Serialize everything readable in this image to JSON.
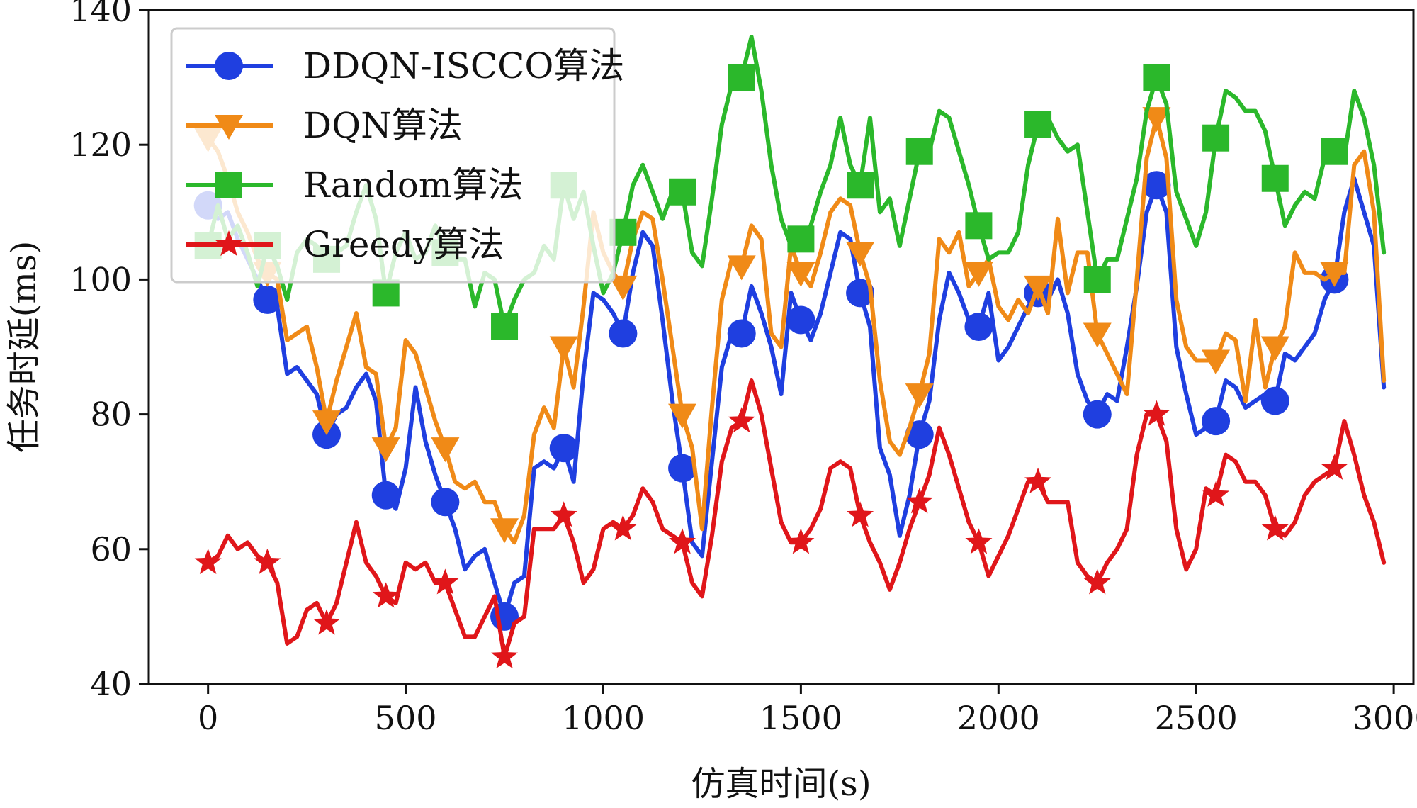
{
  "chart_data": {
    "type": "line",
    "title": "",
    "xlabel": "仿真时间(s)",
    "ylabel": "任务时延(ms)",
    "xlim": [
      -150,
      3050
    ],
    "ylim": [
      40,
      140
    ],
    "xticks": [
      0,
      500,
      1000,
      1500,
      2000,
      2500,
      3000
    ],
    "yticks": [
      40,
      60,
      80,
      100,
      120,
      140
    ],
    "grid": false,
    "legend_position": "top-left",
    "marker_every_x": [
      0,
      150,
      300,
      450,
      600,
      750,
      900,
      1050,
      1200,
      1350,
      1500,
      1650,
      1800,
      1950,
      2100,
      2250,
      2400,
      2550,
      2700,
      2850
    ],
    "x": [
      0,
      25,
      50,
      75,
      100,
      125,
      150,
      175,
      200,
      225,
      250,
      275,
      300,
      325,
      350,
      375,
      400,
      425,
      450,
      475,
      500,
      525,
      550,
      575,
      600,
      625,
      650,
      675,
      700,
      725,
      750,
      775,
      800,
      825,
      850,
      875,
      900,
      925,
      950,
      975,
      1000,
      1025,
      1050,
      1075,
      1100,
      1125,
      1150,
      1175,
      1200,
      1225,
      1250,
      1275,
      1300,
      1325,
      1350,
      1375,
      1400,
      1425,
      1450,
      1475,
      1500,
      1525,
      1550,
      1575,
      1600,
      1625,
      1650,
      1675,
      1700,
      1725,
      1750,
      1775,
      1800,
      1825,
      1850,
      1875,
      1900,
      1925,
      1950,
      1975,
      2000,
      2025,
      2050,
      2075,
      2100,
      2125,
      2150,
      2175,
      2200,
      2225,
      2250,
      2275,
      2300,
      2325,
      2350,
      2375,
      2400,
      2425,
      2450,
      2475,
      2500,
      2525,
      2550,
      2575,
      2600,
      2625,
      2650,
      2675,
      2700,
      2725,
      2750,
      2775,
      2800,
      2825,
      2850,
      2875,
      2900,
      2925,
      2950,
      2975
    ],
    "series": [
      {
        "name": "DDQN-ISCCO算法",
        "color": "#1f3fe0",
        "marker": "circle",
        "values": [
          111,
          109,
          110,
          106,
          103,
          100,
          97,
          96,
          86,
          87,
          85,
          83,
          77,
          80,
          81,
          84,
          86,
          82,
          68,
          66,
          72,
          84,
          76,
          71,
          67,
          63,
          57,
          59,
          60,
          55,
          50,
          55,
          56,
          72,
          73,
          72,
          75,
          70,
          86,
          98,
          97,
          95,
          92,
          101,
          107,
          105,
          94,
          82,
          72,
          61,
          59,
          73,
          87,
          92,
          92,
          99,
          95,
          90,
          83,
          98,
          94,
          91,
          95,
          101,
          107,
          106,
          98,
          93,
          75,
          71,
          62,
          68,
          77,
          82,
          94,
          101,
          98,
          94,
          93,
          98,
          88,
          90,
          93,
          96,
          98,
          97,
          100,
          95,
          86,
          82,
          80,
          83,
          82,
          90,
          99,
          110,
          114,
          110,
          90,
          83,
          77,
          78,
          79,
          85,
          84,
          81,
          82,
          83,
          82,
          89,
          88,
          90,
          92,
          97,
          100,
          110,
          115,
          110,
          105,
          84
        ]
      },
      {
        "name": "DQN算法",
        "color": "#f08a17",
        "marker": "triangle-down",
        "values": [
          121,
          119,
          115,
          110,
          107,
          103,
          101,
          100,
          91,
          92,
          93,
          87,
          79,
          85,
          90,
          95,
          87,
          86,
          75,
          78,
          91,
          89,
          84,
          79,
          75,
          70,
          69,
          70,
          67,
          67,
          63,
          61,
          65,
          77,
          81,
          78,
          90,
          84,
          96,
          110,
          104,
          101,
          99,
          106,
          110,
          109,
          100,
          90,
          80,
          75,
          63,
          81,
          97,
          103,
          102,
          108,
          106,
          92,
          90,
          105,
          101,
          99,
          104,
          110,
          112,
          111,
          104,
          99,
          85,
          76,
          74,
          78,
          83,
          89,
          106,
          104,
          107,
          99,
          101,
          103,
          96,
          94,
          97,
          95,
          99,
          95,
          109,
          98,
          104,
          104,
          92,
          89,
          86,
          83,
          100,
          118,
          124,
          118,
          97,
          90,
          88,
          88,
          88,
          92,
          91,
          82,
          94,
          84,
          90,
          93,
          104,
          101,
          101,
          100,
          101,
          101,
          117,
          119,
          110,
          85
        ]
      },
      {
        "name": "Random算法",
        "color": "#2bb82b",
        "marker": "square",
        "values": [
          105,
          111,
          106,
          108,
          104,
          99,
          105,
          102,
          97,
          104,
          106,
          105,
          103,
          104,
          105,
          110,
          114,
          109,
          98,
          104,
          107,
          103,
          104,
          108,
          104,
          103,
          103,
          96,
          101,
          100,
          93,
          97,
          100,
          101,
          105,
          103,
          114,
          109,
          113,
          105,
          98,
          101,
          107,
          114,
          117,
          113,
          109,
          113,
          113,
          104,
          102,
          112,
          123,
          129,
          130,
          136,
          128,
          117,
          109,
          105,
          106,
          108,
          113,
          117,
          124,
          117,
          114,
          124,
          110,
          112,
          105,
          112,
          119,
          119,
          125,
          124,
          119,
          114,
          108,
          103,
          104,
          104,
          107,
          117,
          123,
          124,
          121,
          119,
          120,
          110,
          100,
          103,
          103,
          109,
          115,
          125,
          130,
          126,
          113,
          109,
          105,
          110,
          121,
          128,
          127,
          125,
          125,
          122,
          115,
          108,
          111,
          113,
          112,
          118,
          119,
          118,
          128,
          124,
          117,
          104
        ]
      },
      {
        "name": "Greedy算法",
        "color": "#e0161a",
        "marker": "star",
        "values": [
          58,
          59,
          62,
          60,
          61,
          59,
          58,
          55,
          46,
          47,
          51,
          52,
          49,
          52,
          58,
          64,
          58,
          56,
          53,
          52,
          58,
          57,
          58,
          55,
          55,
          51,
          47,
          47,
          50,
          53,
          44,
          49,
          50,
          63,
          63,
          63,
          65,
          61,
          55,
          57,
          63,
          64,
          63,
          65,
          69,
          67,
          63,
          62,
          61,
          55,
          53,
          62,
          73,
          78,
          79,
          85,
          80,
          72,
          64,
          61,
          61,
          63,
          66,
          72,
          73,
          72,
          65,
          61,
          58,
          54,
          58,
          63,
          67,
          71,
          78,
          74,
          69,
          64,
          61,
          56,
          59,
          62,
          66,
          70,
          70,
          67,
          67,
          67,
          58,
          56,
          55,
          58,
          60,
          63,
          74,
          80,
          80,
          76,
          63,
          57,
          60,
          69,
          68,
          74,
          73,
          70,
          70,
          68,
          63,
          62,
          64,
          68,
          70,
          71,
          72,
          79,
          74,
          68,
          64,
          58
        ]
      }
    ]
  }
}
